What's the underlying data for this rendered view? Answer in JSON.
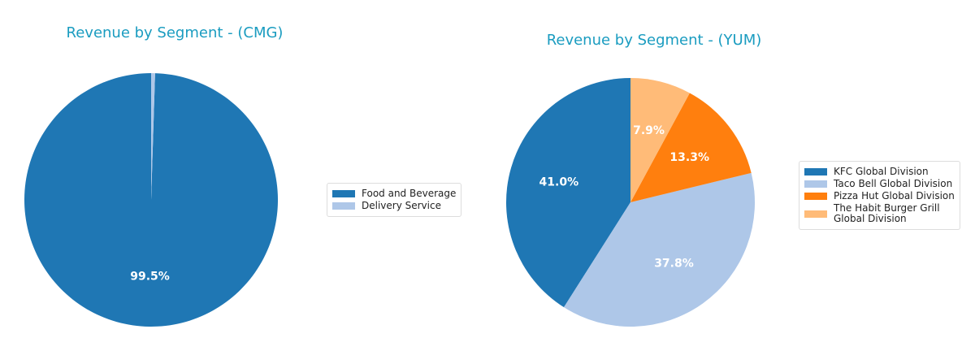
{
  "chart_data": [
    {
      "type": "pie",
      "title": "Revenue by Segment - (CMG)",
      "labels": [
        "Food and Beverage",
        "Delivery Service"
      ],
      "values": [
        99.5,
        0.5
      ],
      "data_labels": [
        "99.5%",
        ""
      ],
      "colors": [
        "#1f77b4",
        "#aec7e8"
      ],
      "legend": "right"
    },
    {
      "type": "pie",
      "title": "Revenue by Segment - (YUM)",
      "labels": [
        "KFC Global Division",
        "Taco Bell Global Division",
        "Pizza Hut Global Division",
        "The Habit Burger Grill Global Division"
      ],
      "legend_lines": [
        [
          "KFC Global Division"
        ],
        [
          "Taco Bell Global Division"
        ],
        [
          "Pizza Hut Global Division"
        ],
        [
          "The Habit Burger Grill",
          "Global Division"
        ]
      ],
      "values": [
        41.0,
        37.8,
        13.3,
        7.9
      ],
      "data_labels": [
        "41.0%",
        "37.8%",
        "13.3%",
        "7.9%"
      ],
      "colors": [
        "#1f77b4",
        "#aec7e8",
        "#ff7f0e",
        "#ffbb78"
      ],
      "legend": "right"
    }
  ]
}
